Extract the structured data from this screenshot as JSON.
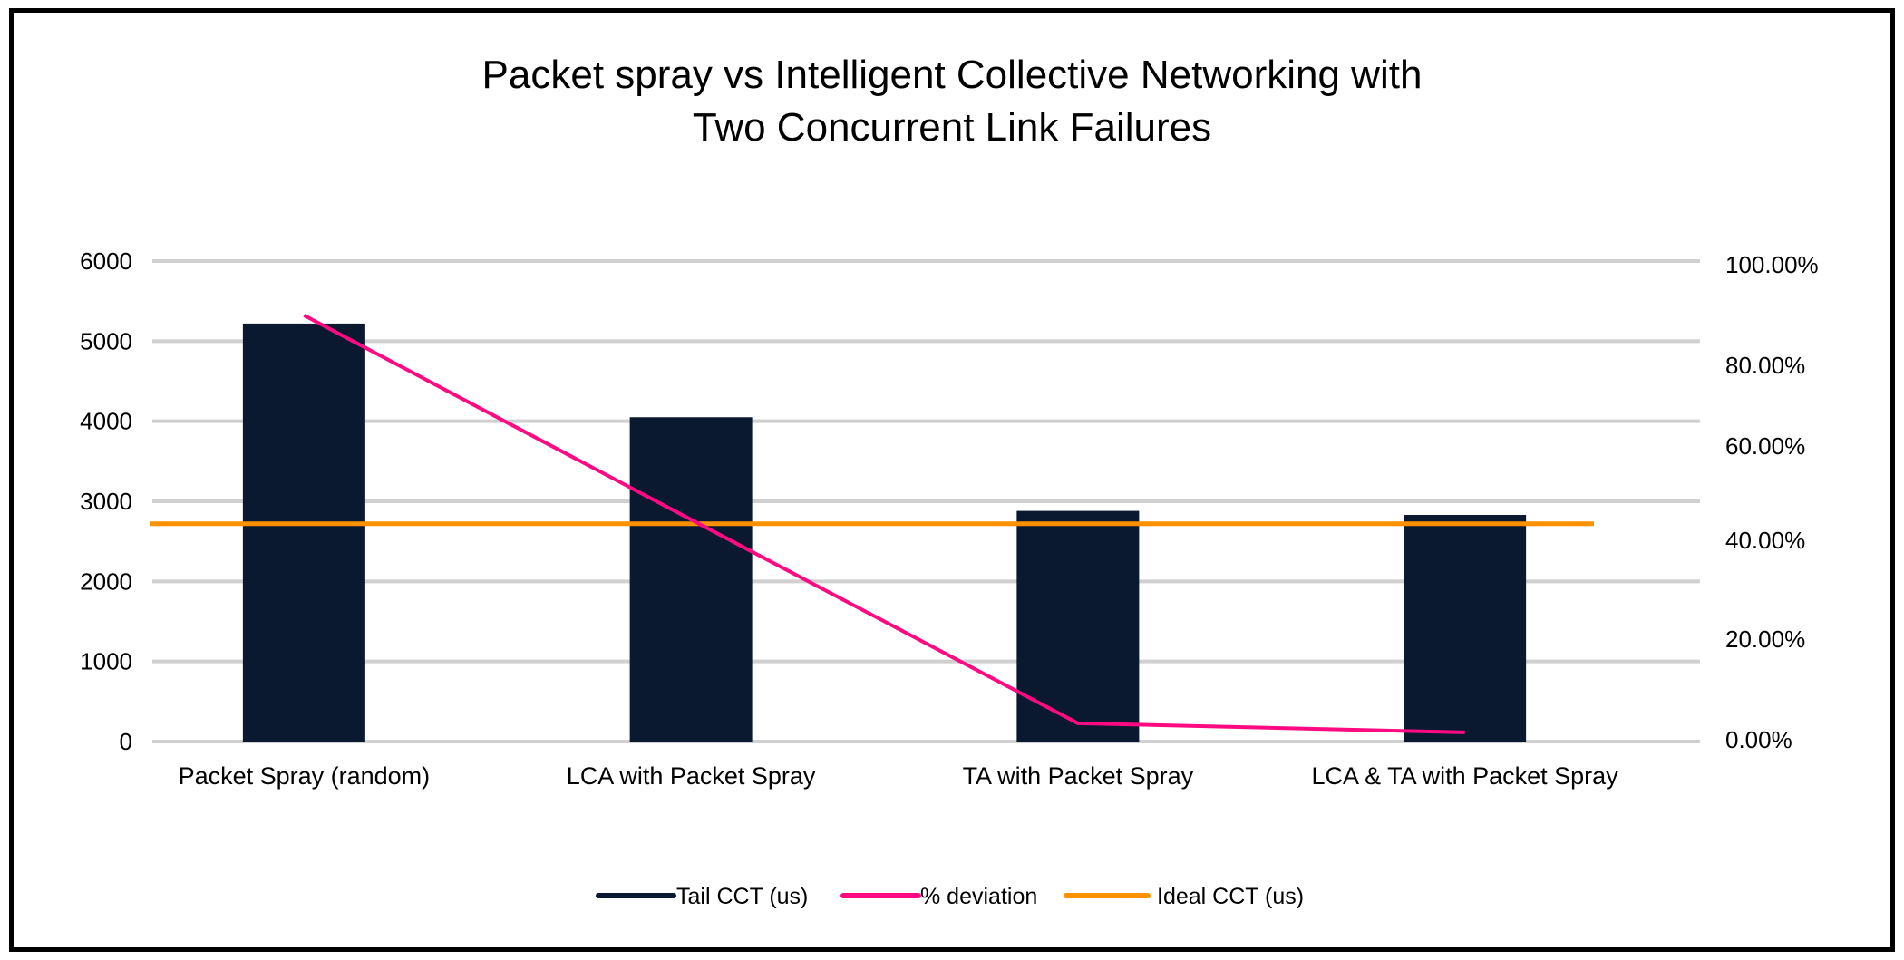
{
  "chart_data": {
    "type": "bar",
    "title": "Packet spray vs Intelligent Collective Networking with Two Concurrent Link Failures",
    "title_lines": [
      "Packet spray vs Intelligent Collective Networking with",
      "Two Concurrent Link Failures"
    ],
    "categories": [
      "Packet Spray (random)",
      "LCA with Packet Spray",
      "TA with Packet Spray",
      "LCA & TA with Packet Spray"
    ],
    "series": [
      {
        "name": "Tail CCT (us)",
        "type": "bar",
        "axis": "left",
        "color": "#0a192f",
        "values": [
          5220,
          4050,
          2880,
          2830
        ]
      },
      {
        "name": "% deviation",
        "type": "line",
        "axis": "right",
        "color": "#ff0a82",
        "values": [
          88.7,
          46.2,
          3.8,
          1.9
        ]
      },
      {
        "name": "Ideal CCT (us)",
        "type": "line",
        "axis": "left",
        "color": "#ff9100",
        "values": [
          2720,
          2720,
          2720,
          2720
        ]
      }
    ],
    "xlabel": "",
    "ylabel": "",
    "ylim": [
      0,
      6000
    ],
    "y2lim": [
      0,
      100
    ],
    "yticks": [
      "0",
      "1000",
      "2000",
      "3000",
      "4000",
      "5000",
      "6000"
    ],
    "y2ticks": [
      "0.00%",
      "20.00%",
      "40.00%",
      "60.00%",
      "80.00%",
      "100.00%"
    ],
    "grid": true,
    "legend_position": "bottom"
  },
  "legend": [
    {
      "label": "Tail CCT (us)",
      "color": "#0a192f"
    },
    {
      "label": "% deviation",
      "color": "#ff0a82"
    },
    {
      "label": "Ideal CCT (us)",
      "color": "#ff9100"
    }
  ]
}
